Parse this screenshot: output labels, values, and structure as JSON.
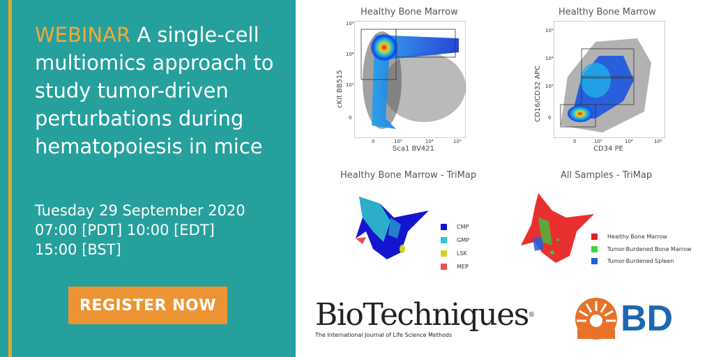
{
  "banner": {
    "webinar_label": "WEBINAR",
    "title": "A single-cell multiomics approach to study tumor-driven perturbations during hematopoiesis in mice",
    "date_line1": "Tuesday 29 September 2020",
    "date_line2": "07:00 [PDT] 10:00 [EDT]",
    "date_line3": "15:00 [BST]",
    "register_label": "REGISTER NOW"
  },
  "colors": {
    "panel_bg": "#26a09c",
    "accent": "#f3a93a",
    "button": "#ec9433",
    "bd_blue": "#1d67b1",
    "bd_orange": "#e8722a"
  },
  "plots": {
    "p1": {
      "title": "Healthy Bone Marrow",
      "xlabel": "Sca1 BV421",
      "ylabel": "cKit BB515",
      "yticks": [
        "10⁵",
        "10⁴",
        "10³",
        "0"
      ],
      "xticks": [
        "0",
        "10³",
        "10⁴",
        "10⁵"
      ]
    },
    "p2": {
      "title": "Healthy Bone Marrow",
      "xlabel": "CD34 PE",
      "ylabel": "CD16/CD32 APC",
      "yticks": [
        "10⁵",
        "10⁴",
        "10³",
        "0"
      ],
      "xticks": [
        "0",
        "10³",
        "10⁴",
        "10⁵"
      ]
    },
    "p3": {
      "title": "Healthy Bone Marrow - TriMap",
      "legend": [
        {
          "label": "CMP",
          "color": "#1010d0"
        },
        {
          "label": "GMP",
          "color": "#2ec8c8"
        },
        {
          "label": "LSK",
          "color": "#d8d020"
        },
        {
          "label": "MEP",
          "color": "#e85050"
        }
      ]
    },
    "p4": {
      "title": "All Samples - TriMap",
      "legend": [
        {
          "label": "Healthy Bone Marrow",
          "color": "#e02020"
        },
        {
          "label": "Tumor-Burdened Bone Marrow",
          "color": "#40d040"
        },
        {
          "label": "Tumor-Burdened Spleen",
          "color": "#2060e0"
        }
      ]
    }
  },
  "logos": {
    "biotechniques_name": "BioTechniques",
    "biotechniques_reg": "®",
    "biotechniques_tagline": "The International Journal of Life Science Methods",
    "bd_text": "BD"
  }
}
